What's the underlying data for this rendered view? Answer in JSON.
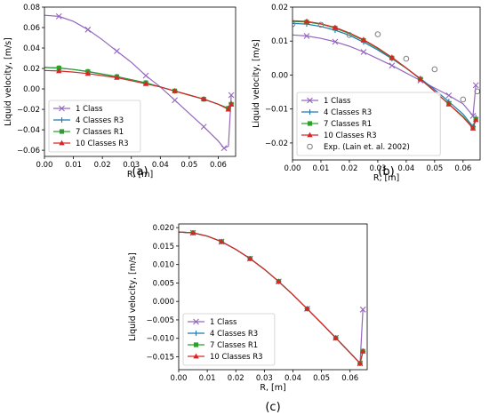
{
  "series_styles": [
    {
      "name": "1 Class",
      "color": "#9467bd",
      "marker": "x"
    },
    {
      "name": "4 Classes R3",
      "color": "#1f77b4",
      "marker": "plus"
    },
    {
      "name": "7 Classes R1",
      "color": "#2ca02c",
      "marker": "square"
    },
    {
      "name": "10 Classes R3",
      "color": "#d62728",
      "marker": "triangle"
    }
  ],
  "exp_style": {
    "name": "Exp. (Lain et. al. 2002)",
    "color": "#7f7f7f",
    "marker": "circle"
  },
  "chart_data": [
    {
      "type": "line",
      "panel_label": "(a)",
      "xlabel": "R, [m]",
      "ylabel": "Liquid velocity, [m/s]",
      "xlim": [
        0,
        0.066
      ],
      "ylim": [
        -0.066,
        0.08
      ],
      "xticks": [
        0,
        0.01,
        0.02,
        0.03,
        0.04,
        0.05,
        0.06
      ],
      "xtick_labels": [
        "0.00",
        "0.01",
        "0.02",
        "0.03",
        "0.04",
        "0.05",
        "0.06"
      ],
      "yticks": [
        -0.06,
        -0.04,
        -0.02,
        0,
        0.02,
        0.04,
        0.06,
        0.08
      ],
      "ytick_labels": [
        "−0.06",
        "−0.04",
        "−0.02",
        "0.00",
        "0.02",
        "0.04",
        "0.06",
        "0.08"
      ],
      "legend": "lower-left",
      "grid": false,
      "series": [
        {
          "name": "1 Class",
          "x": [
            0,
            0.005,
            0.01,
            0.015,
            0.02,
            0.025,
            0.03,
            0.035,
            0.04,
            0.045,
            0.05,
            0.055,
            0.06,
            0.062,
            0.0635,
            0.0645
          ],
          "y": [
            0.072,
            0.071,
            0.066,
            0.058,
            0.048,
            0.037,
            0.026,
            0.013,
            0.002,
            -0.011,
            -0.024,
            -0.037,
            -0.051,
            -0.058,
            -0.056,
            -0.006
          ]
        },
        {
          "name": "4 Classes R3",
          "x": [
            0,
            0.005,
            0.01,
            0.015,
            0.02,
            0.025,
            0.03,
            0.035,
            0.04,
            0.045,
            0.05,
            0.055,
            0.06,
            0.0635,
            0.0645
          ],
          "y": [
            0.021,
            0.0205,
            0.019,
            0.017,
            0.0145,
            0.012,
            0.009,
            0.006,
            0.002,
            -0.002,
            -0.006,
            -0.01,
            -0.015,
            -0.019,
            -0.014
          ]
        },
        {
          "name": "7 Classes R1",
          "x": [
            0,
            0.005,
            0.01,
            0.015,
            0.02,
            0.025,
            0.03,
            0.035,
            0.04,
            0.045,
            0.05,
            0.055,
            0.06,
            0.0635,
            0.0645
          ],
          "y": [
            0.021,
            0.0205,
            0.019,
            0.017,
            0.0145,
            0.012,
            0.009,
            0.006,
            0.002,
            -0.002,
            -0.006,
            -0.01,
            -0.015,
            -0.019,
            -0.015
          ]
        },
        {
          "name": "10 Classes R3",
          "x": [
            0,
            0.005,
            0.01,
            0.015,
            0.02,
            0.025,
            0.03,
            0.035,
            0.04,
            0.045,
            0.05,
            0.055,
            0.06,
            0.0635,
            0.0645
          ],
          "y": [
            0.018,
            0.0175,
            0.0165,
            0.015,
            0.013,
            0.011,
            0.008,
            0.005,
            0.002,
            -0.002,
            -0.006,
            -0.01,
            -0.015,
            -0.02,
            -0.015
          ]
        }
      ]
    },
    {
      "type": "line",
      "panel_label": "(b)",
      "xlabel": "R, [m]",
      "ylabel": "Liquid velocity, [m/s]",
      "xlim": [
        0,
        0.066
      ],
      "ylim": [
        -0.025,
        0.02
      ],
      "xticks": [
        0,
        0.01,
        0.02,
        0.03,
        0.04,
        0.05,
        0.06
      ],
      "xtick_labels": [
        "0.00",
        "0.01",
        "0.02",
        "0.03",
        "0.04",
        "0.05",
        "0.06"
      ],
      "yticks": [
        -0.02,
        -0.01,
        0,
        0.01,
        0.02
      ],
      "ytick_labels": [
        "−0.02",
        "−0.01",
        "0.00",
        "0.01",
        "0.02"
      ],
      "legend": "lower-left",
      "grid": false,
      "series": [
        {
          "name": "1 Class",
          "x": [
            0,
            0.005,
            0.01,
            0.015,
            0.02,
            0.025,
            0.03,
            0.035,
            0.04,
            0.045,
            0.05,
            0.055,
            0.06,
            0.0635,
            0.0645
          ],
          "y": [
            0.0118,
            0.0115,
            0.0108,
            0.0098,
            0.0085,
            0.0068,
            0.0048,
            0.0028,
            0.0006,
            -0.0016,
            -0.0038,
            -0.006,
            -0.0085,
            -0.012,
            -0.003
          ]
        },
        {
          "name": "4 Classes R3",
          "x": [
            0,
            0.005,
            0.01,
            0.015,
            0.02,
            0.025,
            0.03,
            0.035,
            0.04,
            0.045,
            0.05,
            0.055,
            0.06,
            0.0635,
            0.0645
          ],
          "y": [
            0.0152,
            0.015,
            0.0143,
            0.0132,
            0.0117,
            0.0097,
            0.0074,
            0.0048,
            0.002,
            -0.001,
            -0.0043,
            -0.0078,
            -0.0115,
            -0.0152,
            -0.0125
          ]
        },
        {
          "name": "7 Classes R1",
          "x": [
            0,
            0.005,
            0.01,
            0.015,
            0.02,
            0.025,
            0.03,
            0.035,
            0.04,
            0.045,
            0.05,
            0.055,
            0.06,
            0.0635,
            0.0645
          ],
          "y": [
            0.0158,
            0.0156,
            0.015,
            0.0138,
            0.0122,
            0.0102,
            0.0078,
            0.005,
            0.002,
            -0.0012,
            -0.0048,
            -0.0085,
            -0.0122,
            -0.0155,
            -0.013
          ]
        },
        {
          "name": "10 Classes R3",
          "x": [
            0,
            0.005,
            0.01,
            0.015,
            0.02,
            0.025,
            0.03,
            0.035,
            0.04,
            0.045,
            0.05,
            0.055,
            0.06,
            0.0635,
            0.0645
          ],
          "y": [
            0.016,
            0.0158,
            0.0151,
            0.014,
            0.0124,
            0.0104,
            0.008,
            0.0052,
            0.0021,
            -0.0012,
            -0.0048,
            -0.0086,
            -0.0124,
            -0.0157,
            -0.0132
          ]
        },
        {
          "name": "Exp. (Lain et. al. 2002)",
          "scatter": true,
          "x": [
            0.0,
            0.01,
            0.02,
            0.03,
            0.04,
            0.05,
            0.06,
            0.065
          ],
          "y": [
            0.015,
            0.0148,
            0.0118,
            0.012,
            0.0048,
            0.0017,
            -0.0072,
            -0.0048
          ]
        }
      ]
    },
    {
      "type": "line",
      "panel_label": "(c)",
      "xlabel": "R, [m]",
      "ylabel": "Liquid velocity, [m/s]",
      "xlim": [
        0,
        0.066
      ],
      "ylim": [
        -0.0185,
        0.021
      ],
      "xticks": [
        0,
        0.01,
        0.02,
        0.03,
        0.04,
        0.05,
        0.06
      ],
      "xtick_labels": [
        "0.00",
        "0.01",
        "0.02",
        "0.03",
        "0.04",
        "0.05",
        "0.06"
      ],
      "yticks": [
        -0.015,
        -0.01,
        -0.005,
        0,
        0.005,
        0.01,
        0.015,
        0.02
      ],
      "ytick_labels": [
        "−0.015",
        "−0.010",
        "−0.005",
        "0.000",
        "0.005",
        "0.010",
        "0.015",
        "0.020"
      ],
      "legend": "lower-left",
      "grid": false,
      "series": [
        {
          "name": "1 Class",
          "x": [
            0,
            0.005,
            0.01,
            0.015,
            0.02,
            0.025,
            0.03,
            0.035,
            0.04,
            0.045,
            0.05,
            0.055,
            0.06,
            0.0635,
            0.0645
          ],
          "y": [
            0.0188,
            0.0186,
            0.0177,
            0.0162,
            0.0141,
            0.0116,
            0.0087,
            0.0054,
            0.0018,
            -0.002,
            -0.0059,
            -0.0099,
            -0.0139,
            -0.0168,
            -0.0022
          ]
        },
        {
          "name": "4 Classes R3",
          "x": [
            0,
            0.005,
            0.01,
            0.015,
            0.02,
            0.025,
            0.03,
            0.035,
            0.04,
            0.045,
            0.05,
            0.055,
            0.06,
            0.0635,
            0.0645
          ],
          "y": [
            0.0188,
            0.0186,
            0.0177,
            0.0162,
            0.0141,
            0.0116,
            0.0087,
            0.0054,
            0.0018,
            -0.002,
            -0.0059,
            -0.0099,
            -0.0139,
            -0.0168,
            -0.0135
          ]
        },
        {
          "name": "7 Classes R1",
          "x": [
            0,
            0.005,
            0.01,
            0.015,
            0.02,
            0.025,
            0.03,
            0.035,
            0.04,
            0.045,
            0.05,
            0.055,
            0.06,
            0.0635,
            0.0645
          ],
          "y": [
            0.0188,
            0.0186,
            0.0177,
            0.0162,
            0.0141,
            0.0116,
            0.0087,
            0.0054,
            0.0018,
            -0.002,
            -0.0059,
            -0.0099,
            -0.0139,
            -0.0168,
            -0.0135
          ]
        },
        {
          "name": "10 Classes R3",
          "x": [
            0,
            0.005,
            0.01,
            0.015,
            0.02,
            0.025,
            0.03,
            0.035,
            0.04,
            0.045,
            0.05,
            0.055,
            0.06,
            0.0635,
            0.0645
          ],
          "y": [
            0.0188,
            0.0186,
            0.0177,
            0.0162,
            0.0141,
            0.0116,
            0.0087,
            0.0054,
            0.0018,
            -0.002,
            -0.0059,
            -0.0099,
            -0.0139,
            -0.0168,
            -0.0135
          ]
        }
      ]
    }
  ]
}
